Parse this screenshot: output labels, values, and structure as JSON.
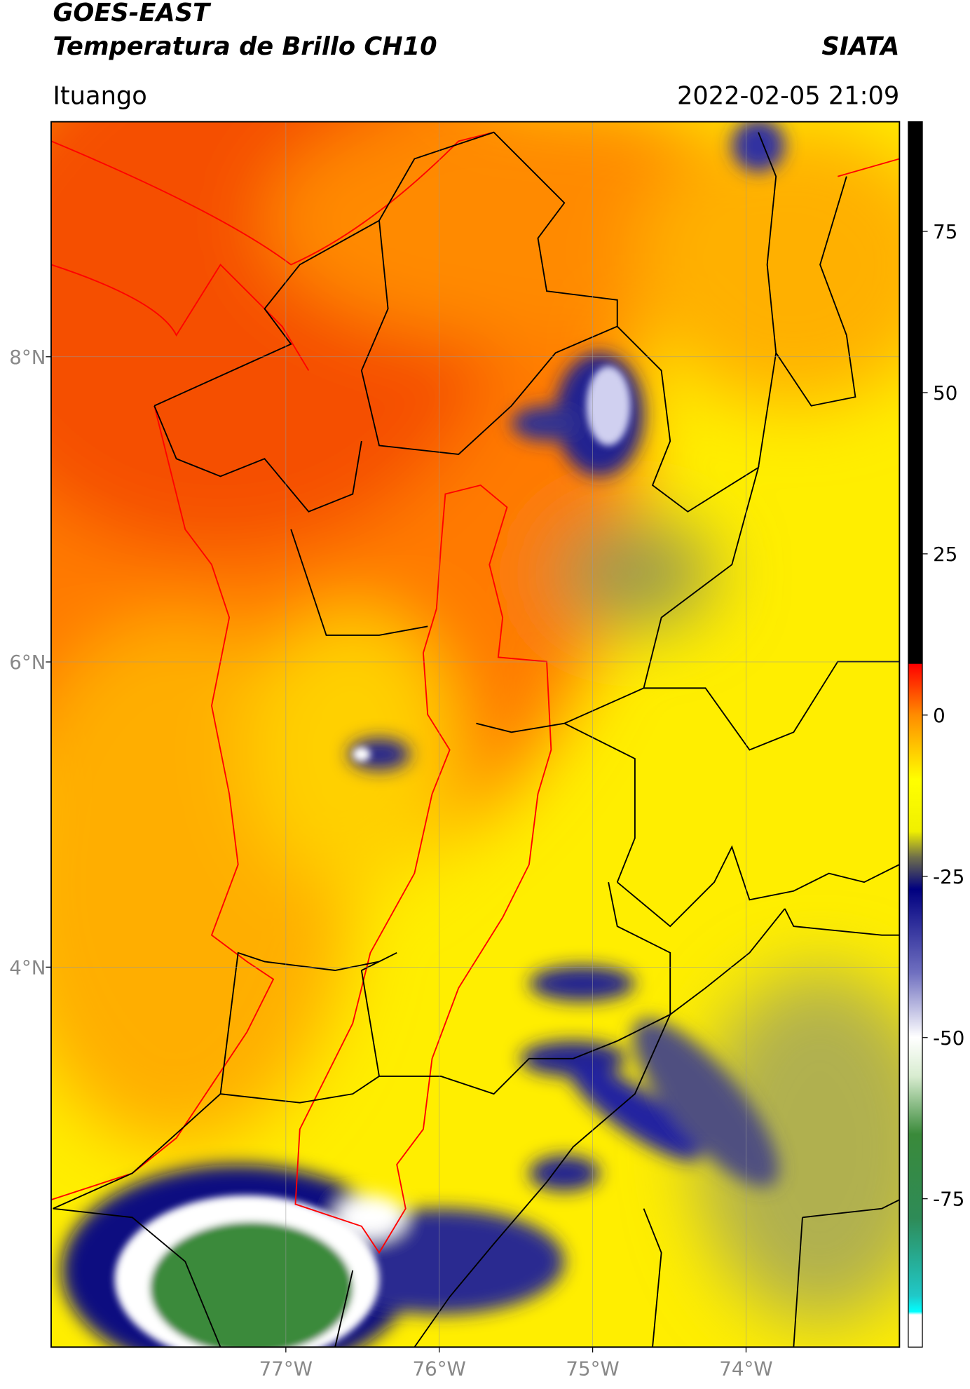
{
  "map": {
    "title": "GOES-EAST",
    "subtitle": "Temperatura de Brillo CH10",
    "source": "SIATA",
    "location": "Ituango",
    "datetime": "2022-02-05 21:09",
    "xlim": [
      -78.53,
      -73.0
    ],
    "ylim": [
      1.51,
      9.54
    ],
    "xticks": [
      {
        "value": -77,
        "label": "77°W"
      },
      {
        "value": -76,
        "label": "76°W"
      },
      {
        "value": -75,
        "label": "75°W"
      },
      {
        "value": -74,
        "label": "74°W"
      }
    ],
    "yticks": [
      {
        "value": 8,
        "label": "8°N"
      },
      {
        "value": 6,
        "label": "6°N"
      },
      {
        "value": 4,
        "label": "4°N"
      }
    ],
    "grid": true,
    "colorbar": {
      "lim": [
        -98,
        92
      ],
      "ticks": [
        75,
        50,
        25,
        0,
        -25,
        -50,
        -75
      ],
      "stops": [
        {
          "value": 92,
          "color": "#000000"
        },
        {
          "value": 8,
          "color": "#000000"
        },
        {
          "value": 7.9,
          "color": "#ff0000"
        },
        {
          "value": 0,
          "color": "#ff8c00"
        },
        {
          "value": -10,
          "color": "#ffff00"
        },
        {
          "value": -18,
          "color": "#f0f000"
        },
        {
          "value": -22,
          "color": "#70704a"
        },
        {
          "value": -27,
          "color": "#000080"
        },
        {
          "value": -40,
          "color": "#7070c0"
        },
        {
          "value": -50,
          "color": "#ffffff"
        },
        {
          "value": -56,
          "color": "#d8ecd0"
        },
        {
          "value": -65,
          "color": "#3a8a3a"
        },
        {
          "value": -78,
          "color": "#2e8b57"
        },
        {
          "value": -90,
          "color": "#20c8c8"
        },
        {
          "value": -92.5,
          "color": "#00ffff"
        },
        {
          "value": -93,
          "color": "#ffffff"
        },
        {
          "value": -98,
          "color": "#ffffff"
        }
      ]
    }
  }
}
